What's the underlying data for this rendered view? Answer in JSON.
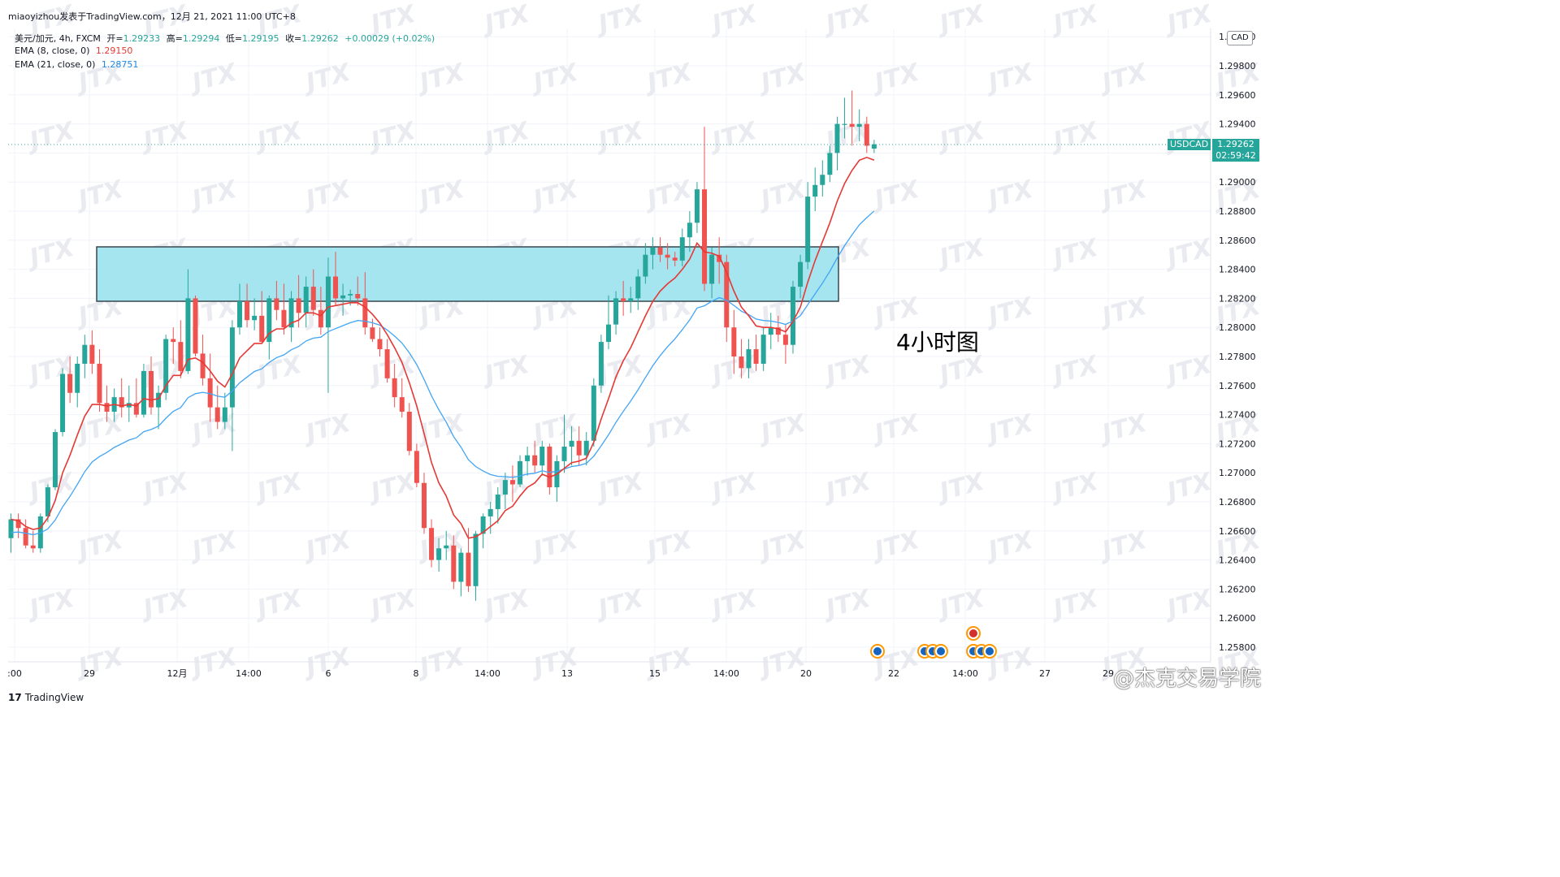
{
  "header": {
    "publisher_line": "miaoyizhou发表于TradingView.com，12月 21, 2021 11:00 UTC+8",
    "symbol_line": "美元/加元, 4h, FXCM",
    "open_label": "开=",
    "open_value": "1.29233",
    "high_label": "高=",
    "high_value": "1.29294",
    "low_label": "低=",
    "low_value": "1.29195",
    "close_label": "收=",
    "close_value": "1.29262",
    "change": "+0.00029 (+0.02%)"
  },
  "indicators": [
    {
      "label": "EMA (8, close, 0)",
      "value": "1.29150",
      "color": "#e53935"
    },
    {
      "label": "EMA (21, close, 0)",
      "value": "1.28751",
      "color": "#1e88e5"
    }
  ],
  "price_axis": {
    "currency_button": "CAD",
    "symbol_tag": "USDCAD",
    "last_price": "1.29262",
    "countdown": "02:59:42"
  },
  "overlay_text": "4小时图",
  "credit_text": "@杰克交易学院",
  "brand": "TradingView",
  "watermark_text": "JTX",
  "colors": {
    "up": "#26a69a",
    "down": "#ef5350",
    "zone_fill": "#a5e5ef",
    "ema8": "#e53935",
    "ema21": "#42a5f5"
  },
  "chart_data": {
    "type": "candlestick",
    "title": "美元/加元, 4h, FXCM",
    "ylim": [
      1.257,
      1.302
    ],
    "y_ticks": [
      "1.25800",
      "1.26000",
      "1.26200",
      "1.26400",
      "1.26600",
      "1.26800",
      "1.27000",
      "1.27200",
      "1.27400",
      "1.27600",
      "1.27800",
      "1.28000",
      "1.28200",
      "1.28400",
      "1.28600",
      "1.28800",
      "1.29000",
      "1.29200",
      "1.29400",
      "1.29600",
      "1.29800",
      "1.30000"
    ],
    "x_ticks": [
      ":00",
      "29",
      "12月",
      "14:00",
      "6",
      "8",
      "14:00",
      "13",
      "15",
      "14:00",
      "20",
      "22",
      "14:00",
      "27",
      "29"
    ],
    "candles_ohlc": [
      [
        1.2655,
        1.2672,
        1.2645,
        1.2668
      ],
      [
        1.2668,
        1.2672,
        1.2655,
        1.2662
      ],
      [
        1.2662,
        1.2668,
        1.2648,
        1.265
      ],
      [
        1.265,
        1.266,
        1.2645,
        1.2648
      ],
      [
        1.2648,
        1.2672,
        1.2645,
        1.267
      ],
      [
        1.267,
        1.2692,
        1.2666,
        1.269
      ],
      [
        1.269,
        1.273,
        1.2688,
        1.2728
      ],
      [
        1.2728,
        1.2772,
        1.2725,
        1.2768
      ],
      [
        1.2768,
        1.278,
        1.2748,
        1.2755
      ],
      [
        1.2755,
        1.278,
        1.2745,
        1.2775
      ],
      [
        1.2775,
        1.2795,
        1.2765,
        1.2788
      ],
      [
        1.2788,
        1.2798,
        1.2768,
        1.2775
      ],
      [
        1.2775,
        1.2785,
        1.2742,
        1.2748
      ],
      [
        1.2748,
        1.276,
        1.2735,
        1.2742
      ],
      [
        1.2742,
        1.2758,
        1.2735,
        1.2752
      ],
      [
        1.2752,
        1.2765,
        1.2738,
        1.2745
      ],
      [
        1.2745,
        1.276,
        1.2735,
        1.2748
      ],
      [
        1.2748,
        1.2765,
        1.2738,
        1.274
      ],
      [
        1.274,
        1.2775,
        1.2738,
        1.277
      ],
      [
        1.277,
        1.278,
        1.274,
        1.2745
      ],
      [
        1.2745,
        1.276,
        1.273,
        1.2755
      ],
      [
        1.2755,
        1.2795,
        1.275,
        1.2792
      ],
      [
        1.2792,
        1.28,
        1.2775,
        1.279
      ],
      [
        1.279,
        1.2805,
        1.2765,
        1.277
      ],
      [
        1.277,
        1.284,
        1.2768,
        1.282
      ],
      [
        1.282,
        1.2822,
        1.278,
        1.2782
      ],
      [
        1.2782,
        1.2795,
        1.276,
        1.2765
      ],
      [
        1.2765,
        1.2782,
        1.2735,
        1.2745
      ],
      [
        1.2745,
        1.276,
        1.273,
        1.2735
      ],
      [
        1.2735,
        1.2755,
        1.273,
        1.2745
      ],
      [
        1.2745,
        1.2805,
        1.2715,
        1.28
      ],
      [
        1.28,
        1.283,
        1.2795,
        1.2818
      ],
      [
        1.2818,
        1.283,
        1.28,
        1.2805
      ],
      [
        1.2805,
        1.282,
        1.2798,
        1.2808
      ],
      [
        1.2808,
        1.2825,
        1.2795,
        1.279
      ],
      [
        1.279,
        1.2822,
        1.2778,
        1.282
      ],
      [
        1.282,
        1.2832,
        1.2805,
        1.2812
      ],
      [
        1.2812,
        1.283,
        1.2795,
        1.28
      ],
      [
        1.28,
        1.2825,
        1.279,
        1.282
      ],
      [
        1.282,
        1.2836,
        1.28,
        1.281
      ],
      [
        1.281,
        1.2835,
        1.28,
        1.2828
      ],
      [
        1.2828,
        1.284,
        1.2808,
        1.2812
      ],
      [
        1.2812,
        1.2828,
        1.2795,
        1.28
      ],
      [
        1.28,
        1.2848,
        1.2755,
        1.2835
      ],
      [
        1.2835,
        1.2852,
        1.2815,
        1.282
      ],
      [
        1.282,
        1.283,
        1.2808,
        1.2822
      ],
      [
        1.2822,
        1.2826,
        1.2815,
        1.2823
      ],
      [
        1.2823,
        1.2835,
        1.2815,
        1.282
      ],
      [
        1.282,
        1.2838,
        1.2795,
        1.28
      ],
      [
        1.28,
        1.2806,
        1.279,
        1.2792
      ],
      [
        1.2792,
        1.28,
        1.278,
        1.2785
      ],
      [
        1.2785,
        1.2792,
        1.2762,
        1.2765
      ],
      [
        1.2765,
        1.2775,
        1.2745,
        1.2752
      ],
      [
        1.2752,
        1.2765,
        1.2738,
        1.2742
      ],
      [
        1.2742,
        1.2748,
        1.2712,
        1.2715
      ],
      [
        1.2715,
        1.272,
        1.269,
        1.2693
      ],
      [
        1.2693,
        1.27,
        1.2658,
        1.2662
      ],
      [
        1.2662,
        1.2668,
        1.2635,
        1.264
      ],
      [
        1.264,
        1.2655,
        1.2632,
        1.2648
      ],
      [
        1.2648,
        1.266,
        1.264,
        1.265
      ],
      [
        1.265,
        1.2657,
        1.262,
        1.2625
      ],
      [
        1.2625,
        1.2648,
        1.2615,
        1.2645
      ],
      [
        1.2645,
        1.2662,
        1.2618,
        1.2622
      ],
      [
        1.2622,
        1.266,
        1.2612,
        1.2658
      ],
      [
        1.2658,
        1.2672,
        1.2648,
        1.267
      ],
      [
        1.267,
        1.268,
        1.2658,
        1.2675
      ],
      [
        1.2675,
        1.269,
        1.2665,
        1.2685
      ],
      [
        1.2685,
        1.27,
        1.2675,
        1.2695
      ],
      [
        1.2695,
        1.2705,
        1.268,
        1.2692
      ],
      [
        1.2692,
        1.2712,
        1.269,
        1.2708
      ],
      [
        1.2708,
        1.2718,
        1.2698,
        1.2712
      ],
      [
        1.2712,
        1.2722,
        1.27,
        1.2705
      ],
      [
        1.2705,
        1.2722,
        1.2698,
        1.2718
      ],
      [
        1.2718,
        1.272,
        1.2685,
        1.269
      ],
      [
        1.269,
        1.2712,
        1.268,
        1.2708
      ],
      [
        1.2708,
        1.274,
        1.27,
        1.2718
      ],
      [
        1.2718,
        1.2732,
        1.2705,
        1.2722
      ],
      [
        1.2722,
        1.2732,
        1.2705,
        1.2712
      ],
      [
        1.2712,
        1.2728,
        1.2705,
        1.2722
      ],
      [
        1.2722,
        1.2765,
        1.2718,
        1.276
      ],
      [
        1.276,
        1.2795,
        1.2755,
        1.279
      ],
      [
        1.279,
        1.2822,
        1.2785,
        1.2802
      ],
      [
        1.2802,
        1.2825,
        1.2795,
        1.282
      ],
      [
        1.282,
        1.2832,
        1.2808,
        1.2818
      ],
      [
        1.2818,
        1.2828,
        1.281,
        1.282
      ],
      [
        1.282,
        1.284,
        1.2812,
        1.2835
      ],
      [
        1.2835,
        1.2858,
        1.283,
        1.285
      ],
      [
        1.285,
        1.2862,
        1.284,
        1.2855
      ],
      [
        1.2855,
        1.2862,
        1.2845,
        1.285
      ],
      [
        1.285,
        1.2858,
        1.284,
        1.2848
      ],
      [
        1.2848,
        1.2852,
        1.2842,
        1.2846
      ],
      [
        1.2846,
        1.2868,
        1.2842,
        1.2862
      ],
      [
        1.2862,
        1.288,
        1.2852,
        1.2872
      ],
      [
        1.2872,
        1.29,
        1.2865,
        1.2895
      ],
      [
        1.2895,
        1.2938,
        1.2825,
        1.283
      ],
      [
        1.283,
        1.2855,
        1.282,
        1.285
      ],
      [
        1.285,
        1.2862,
        1.283,
        1.2845
      ],
      [
        1.2845,
        1.285,
        1.279,
        1.28
      ],
      [
        1.28,
        1.2812,
        1.2768,
        1.278
      ],
      [
        1.278,
        1.2792,
        1.2765,
        1.2772
      ],
      [
        1.2772,
        1.2792,
        1.2765,
        1.2785
      ],
      [
        1.2785,
        1.2795,
        1.277,
        1.2775
      ],
      [
        1.2775,
        1.28,
        1.277,
        1.2795
      ],
      [
        1.2795,
        1.281,
        1.2785,
        1.28
      ],
      [
        1.28,
        1.2808,
        1.279,
        1.2795
      ],
      [
        1.2795,
        1.2802,
        1.2775,
        1.2788
      ],
      [
        1.2788,
        1.2832,
        1.2782,
        1.2828
      ],
      [
        1.2828,
        1.285,
        1.282,
        1.2845
      ],
      [
        1.2845,
        1.29,
        1.284,
        1.289
      ],
      [
        1.289,
        1.291,
        1.288,
        1.2898
      ],
      [
        1.2898,
        1.2915,
        1.289,
        1.2905
      ],
      [
        1.2905,
        1.2925,
        1.29,
        1.292
      ],
      [
        1.292,
        1.2945,
        1.2908,
        1.294
      ],
      [
        1.294,
        1.2958,
        1.293,
        1.294
      ],
      [
        1.294,
        1.2963,
        1.2925,
        1.2938
      ],
      [
        1.2938,
        1.295,
        1.2928,
        1.294
      ],
      [
        1.294,
        1.2945,
        1.292,
        1.2925
      ],
      [
        1.2923,
        1.2929,
        1.292,
        1.2926
      ]
    ],
    "ema8_values": [
      1.2668,
      1.2667,
      1.2663,
      1.2661,
      1.2662,
      1.2669,
      1.2681,
      1.27,
      1.2712,
      1.2726,
      1.2739,
      1.2747,
      1.2747,
      1.2746,
      1.2747,
      1.2746,
      1.2747,
      1.2746,
      1.2751,
      1.275,
      1.2751,
      1.276,
      1.2767,
      1.2767,
      1.2778,
      1.2779,
      1.2776,
      1.277,
      1.2763,
      1.2759,
      1.2768,
      1.2779,
      1.2784,
      1.2789,
      1.2789,
      1.2796,
      1.2799,
      1.2799,
      1.2803,
      1.2805,
      1.281,
      1.281,
      1.2808,
      1.2814,
      1.2815,
      1.2816,
      1.2817,
      1.2817,
      1.2814,
      1.2809,
      1.2803,
      1.2795,
      1.2786,
      1.2776,
      1.2762,
      1.2746,
      1.2727,
      1.2707,
      1.2693,
      1.2684,
      1.2671,
      1.2665,
      1.2655,
      1.2656,
      1.2659,
      1.2663,
      1.2667,
      1.2674,
      1.2677,
      1.2684,
      1.269,
      1.2693,
      1.2699,
      1.2697,
      1.2699,
      1.2703,
      1.2707,
      1.2708,
      1.271,
      1.2721,
      1.2737,
      1.2751,
      1.2766,
      1.2777,
      1.2786,
      1.2797,
      1.2808,
      1.2818,
      1.2825,
      1.283,
      1.2834,
      1.284,
      1.2847,
      1.2858,
      1.2852,
      1.2851,
      1.2849,
      1.2838,
      1.2825,
      1.2814,
      1.2808,
      1.2801,
      1.28,
      1.28,
      1.2799,
      1.2797,
      1.2804,
      1.2814,
      1.2831,
      1.2846,
      1.2859,
      1.2872,
      1.2887,
      1.2899,
      1.2908,
      1.2915,
      1.2917,
      1.2915
    ]
  }
}
